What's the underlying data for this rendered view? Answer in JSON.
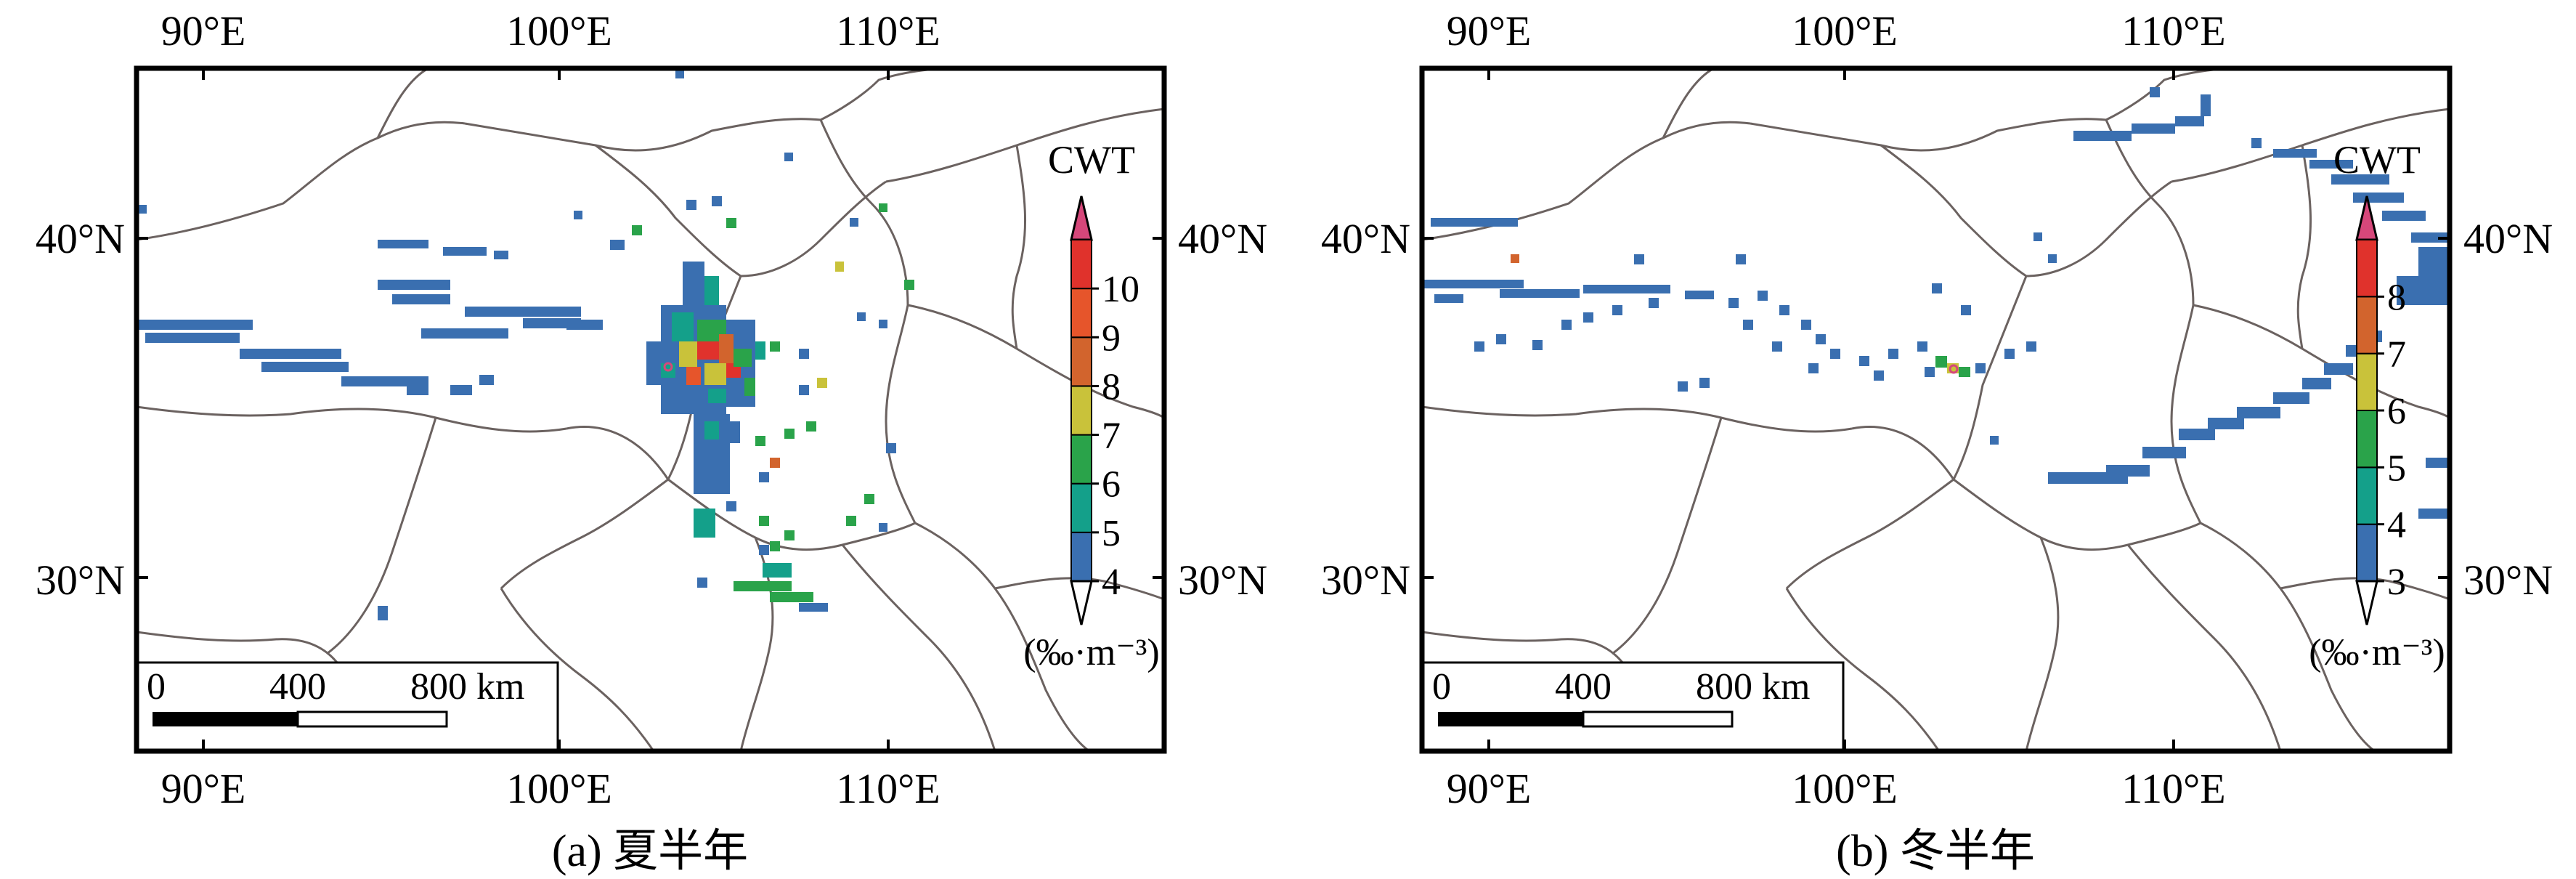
{
  "panels": [
    {
      "id": "a",
      "caption": "(a) 夏半年",
      "colorbar": {
        "title": "CWT",
        "unit": "(‰·m⁻³)",
        "ticks": [
          "4",
          "5",
          "6",
          "7",
          "8",
          "9",
          "10"
        ],
        "colors": [
          "#3a6fb0",
          "#14a08a",
          "#2aa34a",
          "#c9c23a",
          "#d2642d",
          "#e6552b",
          "#e0322c"
        ],
        "under_color": "#ffffff",
        "over_color": "#d6477a"
      },
      "scalebar": {
        "labels": [
          "0",
          "400",
          "800 km"
        ]
      }
    },
    {
      "id": "b",
      "caption": "(b) 冬半年",
      "colorbar": {
        "title": "CWT",
        "unit": "(‰·m⁻³)",
        "ticks": [
          "3",
          "4",
          "5",
          "6",
          "7",
          "8"
        ],
        "colors": [
          "#3a6fb0",
          "#14a08a",
          "#2aa34a",
          "#c9c23a",
          "#d2642d",
          "#e0322c"
        ],
        "under_color": "#ffffff",
        "over_color": "#d6477a"
      },
      "scalebar": {
        "labels": [
          "0",
          "400",
          "800 km"
        ]
      }
    }
  ],
  "axes": {
    "lon_ticks": [
      "90°E",
      "100°E",
      "110°E"
    ],
    "lat_ticks": [
      "40°N",
      "30°N"
    ]
  },
  "colors": {
    "frame": "#000000",
    "border_line": "#6b6260",
    "cell_low": "#3a6fb0"
  }
}
